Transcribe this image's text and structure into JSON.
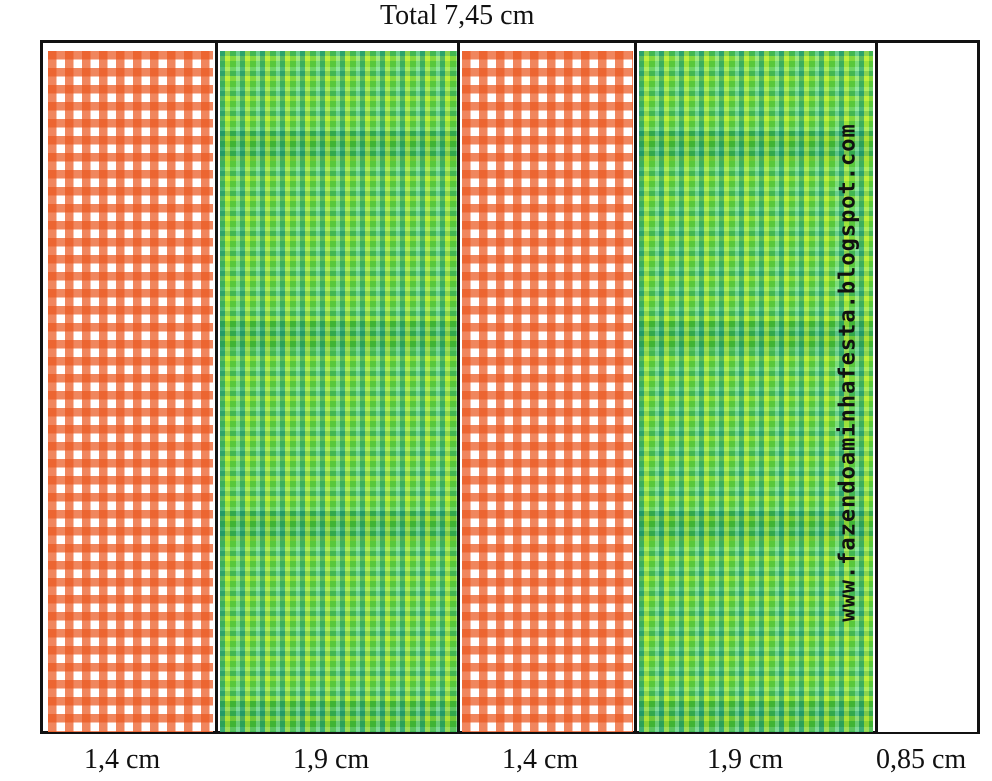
{
  "header": {
    "total_label": "Total 7,45 cm"
  },
  "panels": [
    {
      "pattern": "orange-gingham"
    },
    {
      "pattern": "green-plaid"
    },
    {
      "pattern": "orange-gingham"
    },
    {
      "pattern": "green-plaid"
    },
    {
      "pattern": "white-flap"
    }
  ],
  "watermark": {
    "text": "www.fazendoaminhafesta.blogspot.com"
  },
  "dimensions": [
    "1,4 cm",
    "1,9 cm",
    "1,4 cm",
    "1,9 cm",
    "0,85 cm"
  ],
  "colors": {
    "gingham": "#eb5820",
    "plaid_base": "#7fd63a",
    "plaid_dark": "#006e14",
    "border": "#111111"
  }
}
